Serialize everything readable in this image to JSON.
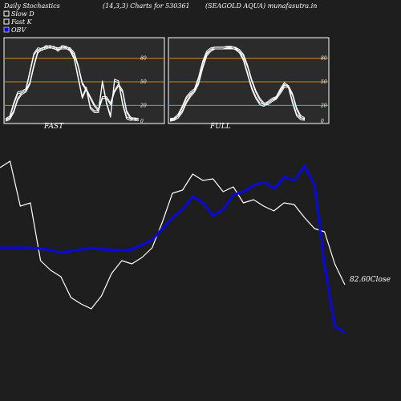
{
  "header": {
    "left": "Daily Stochastics",
    "params": "(14,3,3) Charts for 530361",
    "right": "(SEAGOLD AQUA) munafasutra.in"
  },
  "legend": [
    {
      "label": "Slow  D",
      "color": "#ffffff",
      "style": "hollow"
    },
    {
      "label": "Fast K",
      "color": "#ffffff",
      "style": "hollow"
    },
    {
      "label": "OBV",
      "color": "#0000cc",
      "style": "filled"
    }
  ],
  "colors": {
    "background": "#1e1e1e",
    "panel": "#2b2b2b",
    "level_line": "#c98a1e",
    "stoch": "#ffffff",
    "obv": "#0a0ad0",
    "price": "#ffffff"
  },
  "close_label": "82.60Close",
  "chart_data": [
    {
      "type": "line",
      "title": "",
      "label": "FAST",
      "ylim": [
        0,
        100
      ],
      "levels": [
        20,
        50,
        80
      ],
      "ticks": [
        {
          "v": 80,
          "t": "80"
        },
        {
          "v": 50,
          "t": "50"
        },
        {
          "v": 20,
          "t": "20"
        },
        {
          "v": 0,
          "t": "0"
        }
      ],
      "series": [
        {
          "name": "Fast K",
          "values": [
            2,
            5,
            22,
            36,
            37,
            40,
            62,
            85,
            92,
            91,
            95,
            94,
            94,
            90,
            95,
            94,
            90,
            80,
            55,
            30,
            42,
            17,
            12,
            12,
            50,
            23,
            6,
            52,
            50,
            22,
            4,
            2,
            3,
            2
          ]
        },
        {
          "name": "Slow  D",
          "values": [
            1,
            3,
            12,
            28,
            35,
            38,
            48,
            70,
            88,
            92,
            93,
            95,
            93,
            92,
            93,
            93,
            92,
            86,
            70,
            48,
            40,
            30,
            20,
            14,
            30,
            30,
            22,
            38,
            46,
            38,
            12,
            4,
            2,
            2
          ]
        }
      ]
    },
    {
      "type": "line",
      "title": "",
      "label": "FULL",
      "ylim": [
        0,
        100
      ],
      "levels": [
        20,
        50,
        80
      ],
      "ticks": [
        {
          "v": 80,
          "t": "80"
        },
        {
          "v": 50,
          "t": "50"
        },
        {
          "v": 20,
          "t": "20"
        },
        {
          "v": 0,
          "t": "0"
        }
      ],
      "series": [
        {
          "name": "Fast K",
          "values": [
            2,
            3,
            8,
            18,
            30,
            36,
            40,
            55,
            75,
            88,
            92,
            93,
            93,
            93,
            94,
            94,
            92,
            88,
            78,
            60,
            42,
            30,
            22,
            20,
            24,
            28,
            30,
            40,
            48,
            44,
            24,
            8,
            3,
            2
          ]
        },
        {
          "name": "Slow  D",
          "values": [
            1,
            2,
            5,
            12,
            24,
            32,
            38,
            48,
            68,
            84,
            90,
            93,
            93,
            93,
            93,
            93,
            93,
            90,
            84,
            70,
            52,
            38,
            28,
            22,
            22,
            26,
            29,
            36,
            44,
            44,
            34,
            16,
            6,
            3
          ]
        }
      ]
    },
    {
      "type": "line",
      "title": "",
      "label": "price-obv",
      "series": [
        {
          "name": "OBV",
          "values": [
            58,
            58,
            58,
            58,
            57.5,
            56.5,
            55,
            56,
            57,
            58,
            57,
            56.8,
            56.5,
            57,
            60,
            63,
            70,
            77,
            82,
            90,
            86,
            78,
            82,
            91,
            93,
            97,
            99,
            95,
            102,
            100,
            109,
            97,
            46,
            9,
            5
          ]
        },
        {
          "name": "Close",
          "values": [
            108,
            112,
            84,
            86,
            50,
            44,
            40,
            27,
            23,
            20,
            28,
            42,
            50,
            48,
            52,
            58,
            74,
            92,
            94,
            104,
            100,
            101,
            93,
            96,
            86,
            88,
            84,
            81,
            86,
            85,
            77,
            70,
            68,
            48,
            35
          ]
        }
      ]
    }
  ]
}
